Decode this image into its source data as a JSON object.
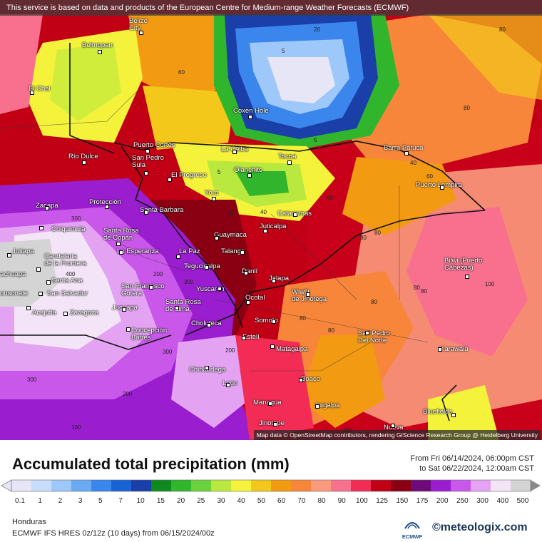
{
  "notice": "This service is based on data and products of the European Centre for Medium-range Weather Forecasts (ECMWF)",
  "attribution": "Map data © OpenStreetMap contributors, rendering GIScience Research Group @ Heidelberg University",
  "title": "Accumulated total precipitation (mm)",
  "date_from": "From Fri 06/14/2024, 06:00pm CST",
  "date_to": "to Sat 06/22/2024, 12:00am CST",
  "region": "Honduras",
  "model_info": "ECMWF IFS HRES 0z/12z (10 days)  from  06/15/2024/00z",
  "provider_logo_text": "ECMWF",
  "brand": "meteologix.com",
  "legend": {
    "labels": [
      "0.1",
      "1",
      "2",
      "3",
      "5",
      "7",
      "10",
      "15",
      "20",
      "25",
      "30",
      "40",
      "50",
      "60",
      "70",
      "80",
      "90",
      "100",
      "125",
      "150",
      "175",
      "200",
      "250",
      "300",
      "400",
      "500"
    ],
    "colors": [
      "#e6e6f7",
      "#c8dcfb",
      "#9fc8fa",
      "#6aaaf3",
      "#3a86ec",
      "#1a63d6",
      "#1a3fa8",
      "#0f8a1e",
      "#31b52c",
      "#6cd23c",
      "#b9e93e",
      "#f4f23a",
      "#f3c81b",
      "#f39a13",
      "#f7863a",
      "#f99a7c",
      "#f8708d",
      "#f22c55",
      "#c10016",
      "#8a0012",
      "#6e0a7a",
      "#9a1ecf",
      "#c957ea",
      "#e4a3f2",
      "#f4e4f7",
      "#d4d4d4"
    ]
  },
  "cities": [
    {
      "name": "Belize\nCity"
    },
    {
      "name": "Belmopan"
    },
    {
      "name": "El Chal"
    },
    {
      "name": "Coxen Hole"
    },
    {
      "name": "Puerto Cortés"
    },
    {
      "name": "La Ceiba"
    },
    {
      "name": "Barra Patuca"
    },
    {
      "name": "Río Dulce"
    },
    {
      "name": "San Pedro\nSula"
    },
    {
      "name": "Olanchito"
    },
    {
      "name": "Tocoa"
    },
    {
      "name": "El Progreso"
    },
    {
      "name": "Puerto Lempira"
    },
    {
      "name": "Yoro"
    },
    {
      "name": "Zacapa"
    },
    {
      "name": "Protección"
    },
    {
      "name": "Santa Barbara"
    },
    {
      "name": "Catacamas"
    },
    {
      "name": "Chiquimula"
    },
    {
      "name": "Santa Rosa\nde Copán"
    },
    {
      "name": "Juticalpa"
    },
    {
      "name": "Guaymaca"
    },
    {
      "name": "Jutiapa"
    },
    {
      "name": "La Esperanza"
    },
    {
      "name": "La Paz"
    },
    {
      "name": "Talanga"
    },
    {
      "name": "Candelaria\nde la Frontera"
    },
    {
      "name": "Santa Ana"
    },
    {
      "name": "Tegucigalpa"
    },
    {
      "name": "Danlí"
    },
    {
      "name": "Bilwi (Puerto\nCabezas)"
    },
    {
      "name": "Jalapa"
    },
    {
      "name": "San Salvador"
    },
    {
      "name": "San Francisco\nGotera"
    },
    {
      "name": "Yuscarán"
    },
    {
      "name": "Wiwilí\nde Jinotega"
    },
    {
      "name": "Ocotal"
    },
    {
      "name": "Acajutla"
    },
    {
      "name": "Zaragoza"
    },
    {
      "name": "Jucuapa"
    },
    {
      "name": "Santa Rosa\nde Lima"
    },
    {
      "name": "Somoto"
    },
    {
      "name": "Choluteca"
    },
    {
      "name": "Concepción\nBatres"
    },
    {
      "name": "San Pedro\nDel Norte"
    },
    {
      "name": "Estelí"
    },
    {
      "name": "Matagalpa"
    },
    {
      "name": "Karawala"
    },
    {
      "name": "Chinandega"
    },
    {
      "name": "Boaco"
    },
    {
      "name": "León"
    },
    {
      "name": "Managua"
    },
    {
      "name": "Juigalpa"
    },
    {
      "name": "Bluefields"
    },
    {
      "name": "Jinotepe"
    },
    {
      "name": "Nueva"
    },
    {
      "name": "onsonate"
    },
    {
      "name": "achuapa"
    }
  ],
  "contour_labels": [
    "20",
    "5",
    "5",
    "60",
    "80",
    "80",
    "40",
    "60",
    "5",
    "80",
    "40",
    "60",
    "60",
    "80",
    "80",
    "300",
    "400",
    "200",
    "300",
    "300",
    "200",
    "300",
    "200",
    "100",
    "80",
    "80",
    "100",
    "80",
    "80",
    "150"
  ]
}
